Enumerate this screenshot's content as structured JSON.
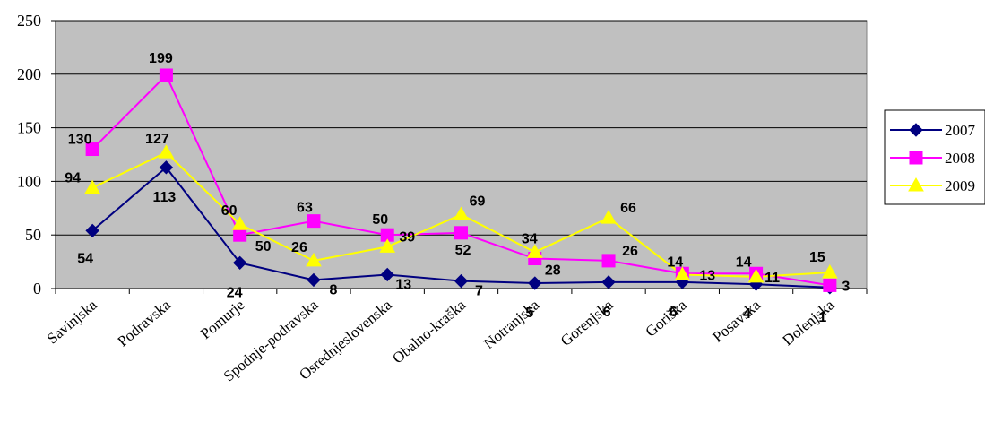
{
  "chart_data": {
    "type": "line",
    "title": "",
    "xlabel": "",
    "ylabel": "",
    "ylim": [
      0,
      250
    ],
    "yticks": [
      0,
      50,
      100,
      150,
      200,
      250
    ],
    "grid": true,
    "legend_position": "right",
    "categories": [
      "Savinjska",
      "Podravska",
      "Pomurje",
      "Spodnje-podravska",
      "Osrednjeslovenska",
      "Obalno-kraška",
      "Notranjska",
      "Gorenjska",
      "Goriška",
      "Posavska",
      "Dolenjska"
    ],
    "series": [
      {
        "name": "2007",
        "color": "#000080",
        "marker": "diamond",
        "values": [
          54,
          113,
          24,
          8,
          13,
          7,
          5,
          6,
          6,
          4,
          1
        ]
      },
      {
        "name": "2008",
        "color": "#FF00FF",
        "marker": "square",
        "values": [
          130,
          199,
          50,
          63,
          50,
          52,
          28,
          26,
          14,
          14,
          3
        ]
      },
      {
        "name": "2009",
        "color": "#FFFF00",
        "marker": "triangle",
        "values": [
          94,
          127,
          60,
          26,
          39,
          69,
          34,
          66,
          13,
          11,
          15
        ]
      }
    ]
  }
}
